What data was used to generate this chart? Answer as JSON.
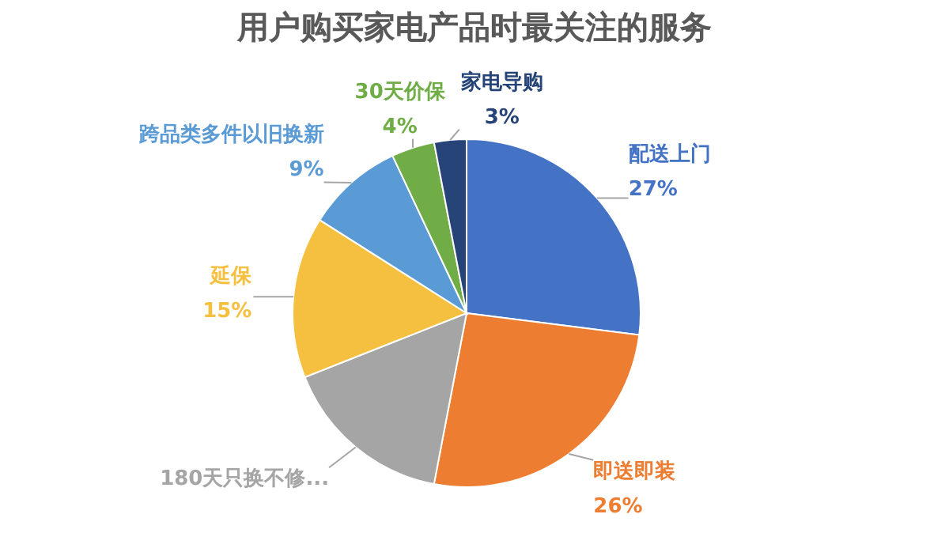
{
  "chart_data": {
    "type": "pie",
    "title": "用户购买家电产品时最关注的服务",
    "categories": [
      "配送上门",
      "即送即装",
      "180天只换不修...",
      "延保",
      "跨品类多件以旧换新",
      "30天价保",
      "家电导购"
    ],
    "values": [
      27,
      26,
      16,
      15,
      9,
      4,
      3
    ],
    "value_labels": [
      "27%",
      "26%",
      null,
      "15%",
      "9%",
      "4%",
      "3%"
    ],
    "colors": [
      "#4472c4",
      "#ed7d31",
      "#a5a5a5",
      "#f5c040",
      "#5b9bd5",
      "#70ad47",
      "#264478"
    ]
  }
}
